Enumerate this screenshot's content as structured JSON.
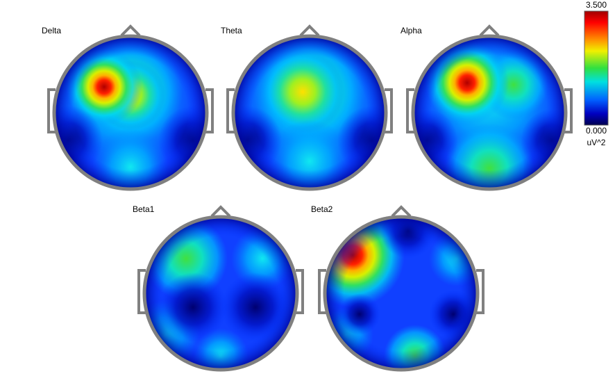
{
  "maps": [
    {
      "label": "Delta"
    },
    {
      "label": "Theta"
    },
    {
      "label": "Alpha"
    },
    {
      "label": "Beta1"
    },
    {
      "label": "Beta2"
    }
  ],
  "colorbar": {
    "max": "3.500",
    "min": "0.000",
    "unit": "uV^2"
  }
}
